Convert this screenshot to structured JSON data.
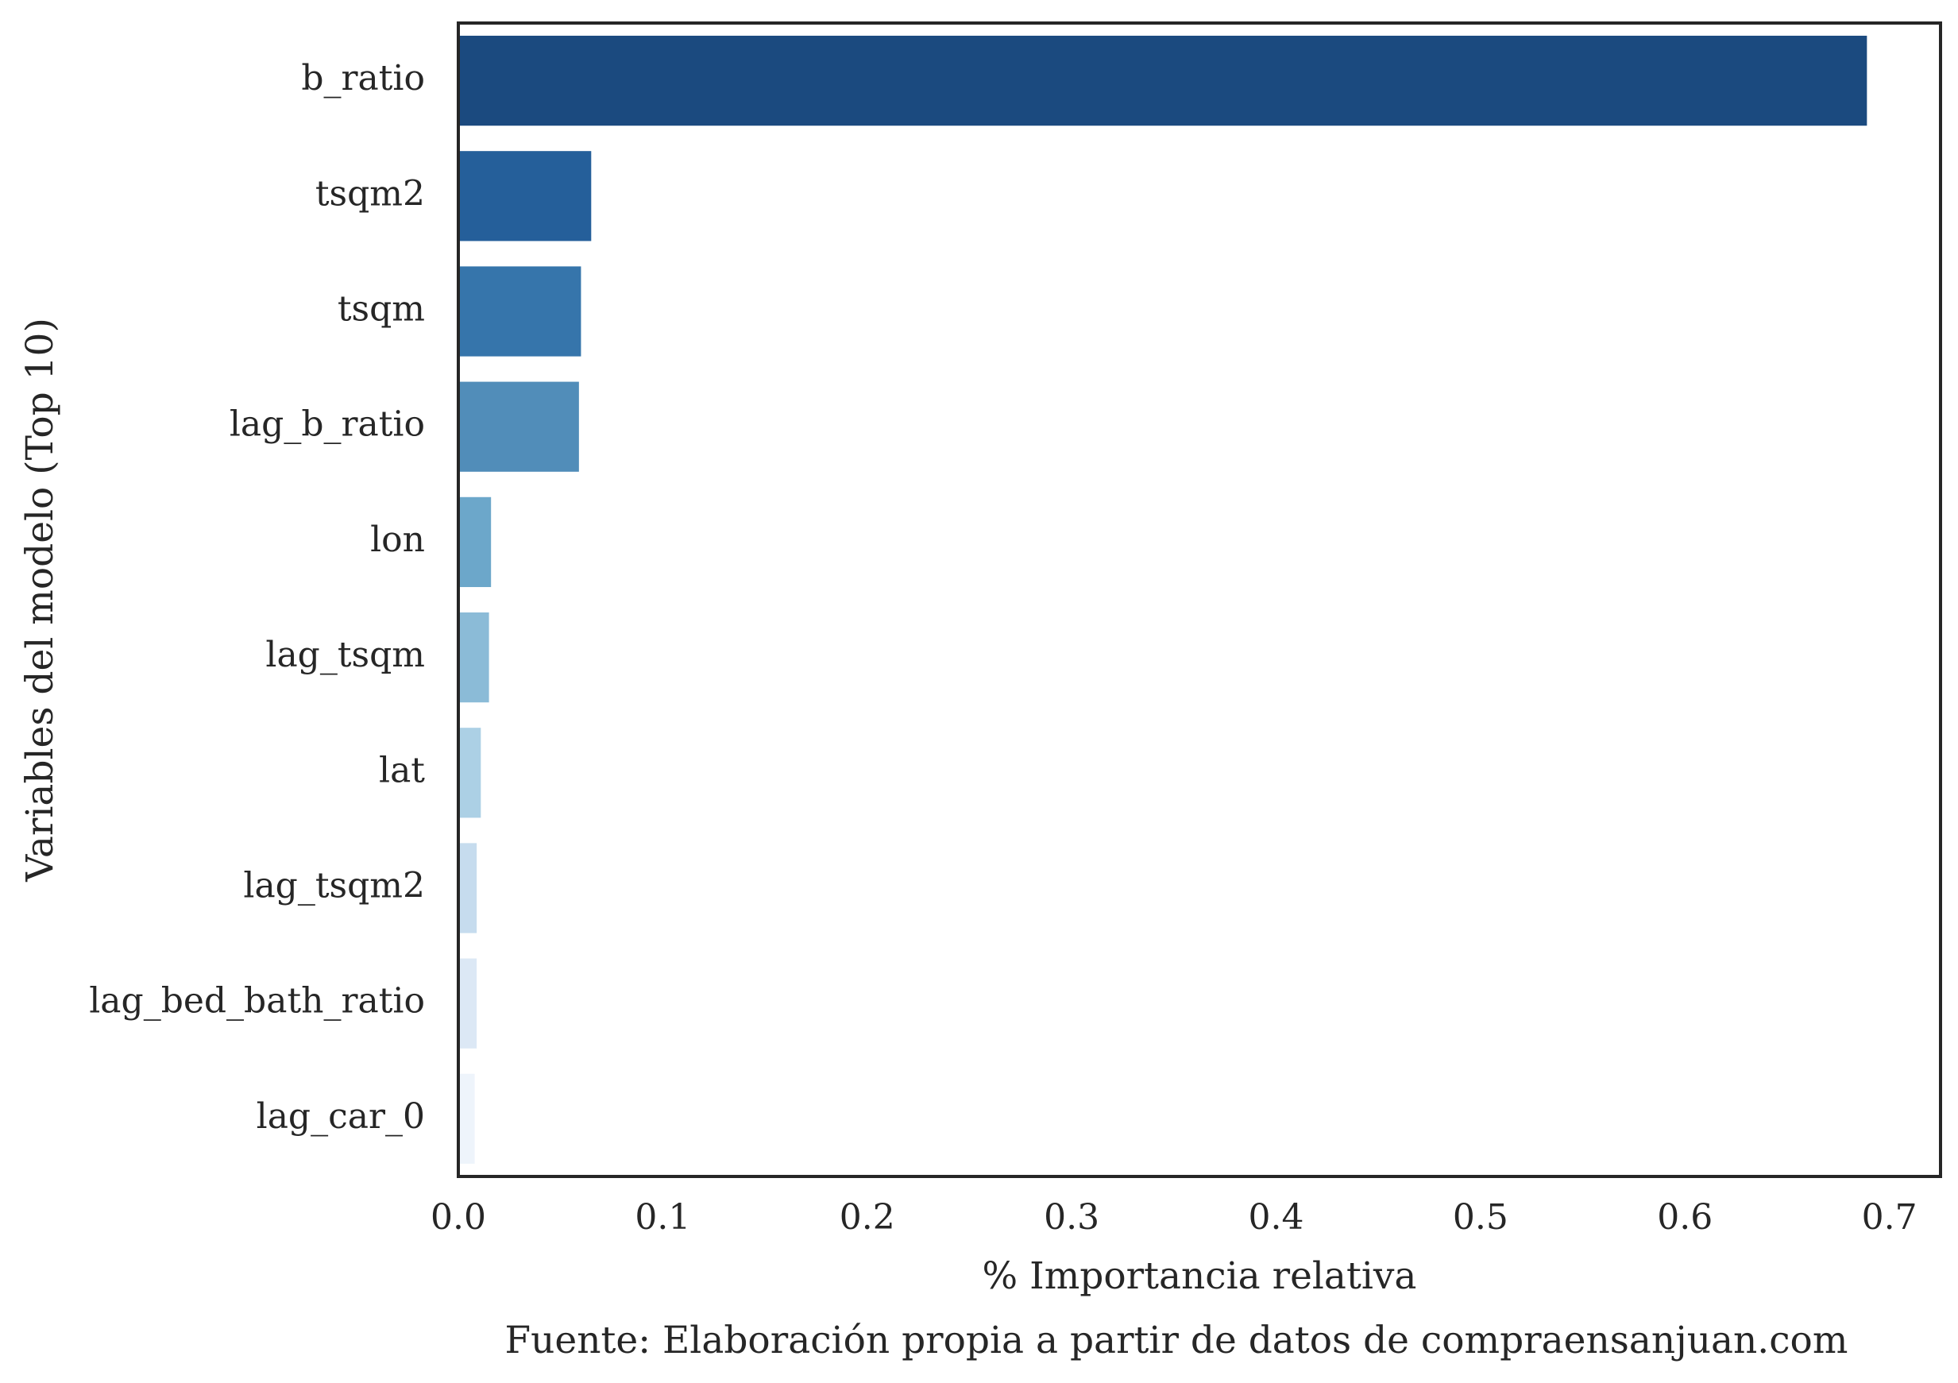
{
  "chart_data": {
    "type": "bar",
    "orientation": "horizontal",
    "categories": [
      "b_ratio",
      "tsqm2",
      "tsqm",
      "lag_b_ratio",
      "lon",
      "lag_tsqm",
      "lat",
      "lag_tsqm2",
      "lag_bed_bath_ratio",
      "lag_car_0"
    ],
    "values": [
      0.689,
      0.065,
      0.06,
      0.059,
      0.016,
      0.015,
      0.011,
      0.009,
      0.009,
      0.008
    ],
    "xlabel": "% Importancia relativa",
    "ylabel": "Variables del modelo (Top 10)",
    "xlim": [
      0.0,
      0.725
    ],
    "xticks": [
      0.0,
      0.1,
      0.2,
      0.3,
      0.4,
      0.5,
      0.6,
      0.7
    ],
    "xtick_labels": [
      "0.0",
      "0.1",
      "0.2",
      "0.3",
      "0.4",
      "0.5",
      "0.6",
      "0.7"
    ],
    "grid": false,
    "legend": "none",
    "bar_colors": [
      "#1b4a7f",
      "#255f9a",
      "#3675ab",
      "#518db9",
      "#6ca7ca",
      "#8bbbd7",
      "#acd0e5",
      "#c6dcee",
      "#dce8f5",
      "#eef4fb"
    ],
    "caption": "Fuente: Elaboración propia a partir de datos de compraensanjuan.com"
  }
}
